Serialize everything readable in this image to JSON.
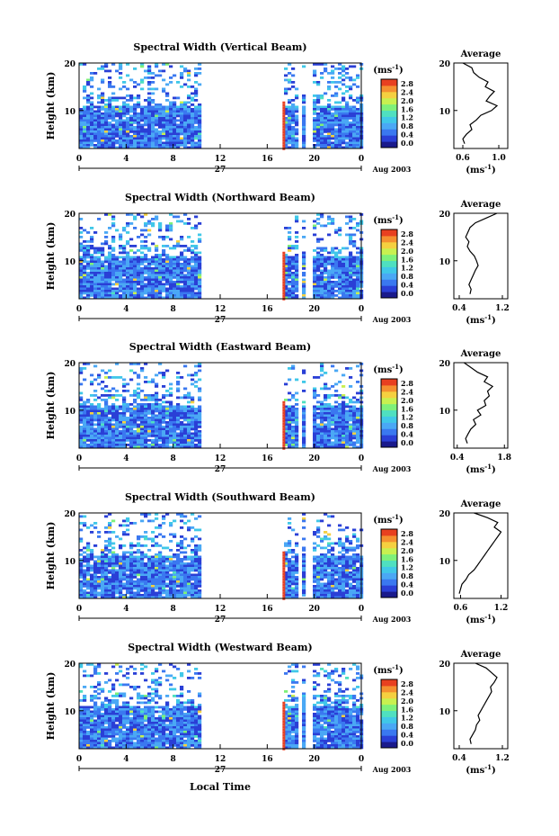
{
  "figure": {
    "xlabel": "Local Time",
    "date_label": "Aug 2003",
    "day_label": "27",
    "cbar_unit": "(ms",
    "cbar_unit_exp": "-1",
    "cbar_unit_close": ")",
    "avg_title": "Average",
    "avg_unit": "(ms",
    "avg_unit_exp": "-1",
    "avg_unit_close": ")",
    "ylabel": "Height (km)",
    "colors": [
      "#1a1a8c",
      "#2a3fd6",
      "#3a78f0",
      "#4aa8f5",
      "#40c8e8",
      "#4fe0c0",
      "#7ef07a",
      "#c8f050",
      "#f5d040",
      "#f59030",
      "#e84020"
    ]
  },
  "chart_data": [
    {
      "type": "heatmap",
      "title": "Spectral Width (Vertical Beam)",
      "x_ticks": [
        "0",
        "4",
        "8",
        "12",
        "16",
        "20",
        "0"
      ],
      "y_ticks": [
        "20",
        "10"
      ],
      "xlim": [
        0,
        24
      ],
      "ylim": [
        2,
        20
      ],
      "colorbar_ticks": [
        "2.8",
        "2.4",
        "2.0",
        "1.6",
        "1.2",
        "0.8",
        "0.4",
        "0.0"
      ],
      "data_gaps_hours": [
        [
          10.2,
          17.3
        ]
      ],
      "average": {
        "xticks": [
          "0.6",
          "1.0"
        ],
        "xlim": [
          0.5,
          1.1
        ],
        "yticks": [
          "20",
          "10"
        ],
        "height": [
          3,
          4,
          5,
          6,
          7,
          8,
          9,
          10,
          11,
          12,
          13,
          14,
          15,
          16,
          17,
          18,
          19,
          20
        ],
        "value": [
          0.62,
          0.6,
          0.64,
          0.7,
          0.68,
          0.75,
          0.8,
          0.92,
          0.98,
          0.86,
          0.9,
          0.95,
          0.85,
          0.88,
          0.78,
          0.72,
          0.7,
          0.6
        ]
      }
    },
    {
      "type": "heatmap",
      "title": "Spectral Width (Northward Beam)",
      "x_ticks": [
        "0",
        "4",
        "8",
        "12",
        "16",
        "20",
        "0"
      ],
      "y_ticks": [
        "20",
        "10"
      ],
      "xlim": [
        0,
        24
      ],
      "ylim": [
        2,
        20
      ],
      "colorbar_ticks": [
        "2.8",
        "2.4",
        "2.0",
        "1.6",
        "1.2",
        "0.8",
        "0.4",
        "0.0"
      ],
      "data_gaps_hours": [
        [
          10.2,
          17.3
        ]
      ],
      "average": {
        "xticks": [
          "0.4",
          "1.2"
        ],
        "xlim": [
          0.3,
          1.3
        ],
        "yticks": [
          "20",
          "10"
        ],
        "height": [
          3,
          4,
          5,
          6,
          7,
          8,
          9,
          10,
          11,
          12,
          13,
          14,
          15,
          16,
          17,
          18,
          19,
          20
        ],
        "value": [
          0.6,
          0.62,
          0.58,
          0.62,
          0.66,
          0.7,
          0.75,
          0.72,
          0.68,
          0.6,
          0.55,
          0.58,
          0.52,
          0.56,
          0.6,
          0.7,
          0.9,
          1.1
        ]
      }
    },
    {
      "type": "heatmap",
      "title": "Spectral Width (Eastward Beam)",
      "x_ticks": [
        "0",
        "4",
        "8",
        "12",
        "16",
        "20",
        "0"
      ],
      "y_ticks": [
        "20",
        "10"
      ],
      "xlim": [
        0,
        24
      ],
      "ylim": [
        2,
        20
      ],
      "colorbar_ticks": [
        "2.8",
        "2.4",
        "2.0",
        "1.6",
        "1.2",
        "0.8",
        "0.4",
        "0.0"
      ],
      "data_gaps_hours": [
        [
          10.2,
          17.3
        ]
      ],
      "average": {
        "xticks": [
          "0.4",
          "1.8"
        ],
        "xlim": [
          0.3,
          1.9
        ],
        "yticks": [
          "20",
          "10"
        ],
        "height": [
          3,
          4,
          5,
          6,
          7,
          8,
          9,
          10,
          11,
          12,
          13,
          14,
          15,
          16,
          17,
          18,
          19,
          20
        ],
        "value": [
          0.7,
          0.65,
          0.72,
          0.8,
          0.95,
          0.88,
          1.1,
          1.0,
          1.25,
          1.2,
          1.35,
          1.3,
          1.45,
          1.2,
          1.3,
          1.0,
          0.8,
          0.6
        ]
      }
    },
    {
      "type": "heatmap",
      "title": "Spectral Width (Southward Beam)",
      "x_ticks": [
        "0",
        "4",
        "8",
        "12",
        "16",
        "20",
        "0"
      ],
      "y_ticks": [
        "20",
        "10"
      ],
      "xlim": [
        0,
        24
      ],
      "ylim": [
        2,
        20
      ],
      "colorbar_ticks": [
        "2.8",
        "2.4",
        "2.0",
        "1.6",
        "1.2",
        "0.8",
        "0.4",
        "0.0"
      ],
      "data_gaps_hours": [
        [
          10.2,
          17.3
        ]
      ],
      "average": {
        "xticks": [
          "0.6",
          "1.2"
        ],
        "xlim": [
          0.5,
          1.3
        ],
        "yticks": [
          "20",
          "10"
        ],
        "height": [
          3,
          4,
          5,
          6,
          7,
          8,
          9,
          10,
          11,
          12,
          13,
          14,
          15,
          16,
          17,
          18,
          19,
          20
        ],
        "value": [
          0.58,
          0.6,
          0.62,
          0.68,
          0.72,
          0.8,
          0.85,
          0.9,
          0.95,
          1.0,
          1.05,
          1.1,
          1.15,
          1.2,
          1.1,
          1.15,
          1.0,
          0.8
        ]
      }
    },
    {
      "type": "heatmap",
      "title": "Spectral Width (Westward Beam)",
      "x_ticks": [
        "0",
        "4",
        "8",
        "12",
        "16",
        "20",
        "0"
      ],
      "y_ticks": [
        "20",
        "10"
      ],
      "xlim": [
        0,
        24
      ],
      "ylim": [
        2,
        20
      ],
      "colorbar_ticks": [
        "2.8",
        "2.4",
        "2.0",
        "1.6",
        "1.2",
        "0.8",
        "0.4",
        "0.0"
      ],
      "data_gaps_hours": [
        [
          10.2,
          17.3
        ]
      ],
      "average": {
        "xticks": [
          "0.4",
          "1.2"
        ],
        "xlim": [
          0.3,
          1.3
        ],
        "yticks": [
          "20",
          "10"
        ],
        "height": [
          3,
          4,
          5,
          6,
          7,
          8,
          9,
          10,
          11,
          12,
          13,
          14,
          15,
          16,
          17,
          18,
          19,
          20
        ],
        "value": [
          0.62,
          0.6,
          0.65,
          0.7,
          0.72,
          0.78,
          0.75,
          0.8,
          0.85,
          0.9,
          0.95,
          1.0,
          0.98,
          1.05,
          1.1,
          1.0,
          0.9,
          0.7
        ]
      }
    }
  ]
}
